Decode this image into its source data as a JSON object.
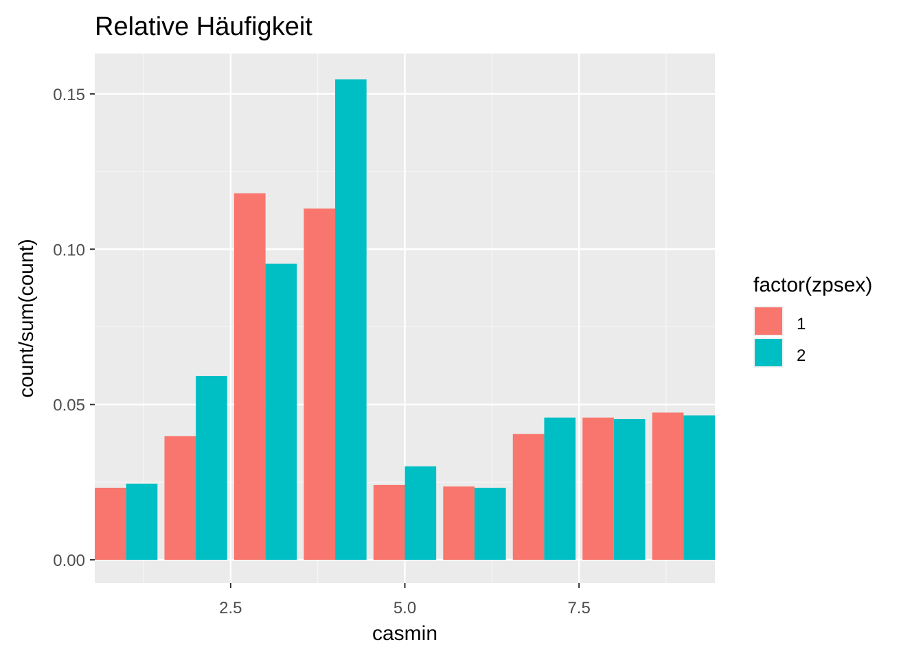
{
  "chart_data": {
    "type": "bar",
    "title": "Relative Häufigkeit",
    "xlabel": "casmin",
    "ylabel": "count/sum(count)",
    "x": [
      1,
      2,
      3,
      4,
      5,
      6,
      7,
      8,
      9
    ],
    "xlim": [
      0.55,
      9.45
    ],
    "ylim": [
      -0.0075,
      0.163
    ],
    "xticks": [
      2.5,
      5.0,
      7.5
    ],
    "xtick_labels": [
      "2.5",
      "5.0",
      "7.5"
    ],
    "yticks": [
      0.0,
      0.05,
      0.1,
      0.15
    ],
    "ytick_labels": [
      "0.00",
      "0.05",
      "0.10",
      "0.15"
    ],
    "grid": true,
    "legend": {
      "title": "factor(zpsex)",
      "position": "right"
    },
    "series": [
      {
        "name": "1",
        "color": "#F8766D",
        "values": [
          0.0232,
          0.0398,
          0.118,
          0.1131,
          0.0241,
          0.0236,
          0.0405,
          0.0458,
          0.0474
        ]
      },
      {
        "name": "2",
        "color": "#00BFC4",
        "values": [
          0.0245,
          0.0592,
          0.0953,
          0.1547,
          0.0301,
          0.0232,
          0.0458,
          0.0453,
          0.0465
        ]
      }
    ]
  }
}
